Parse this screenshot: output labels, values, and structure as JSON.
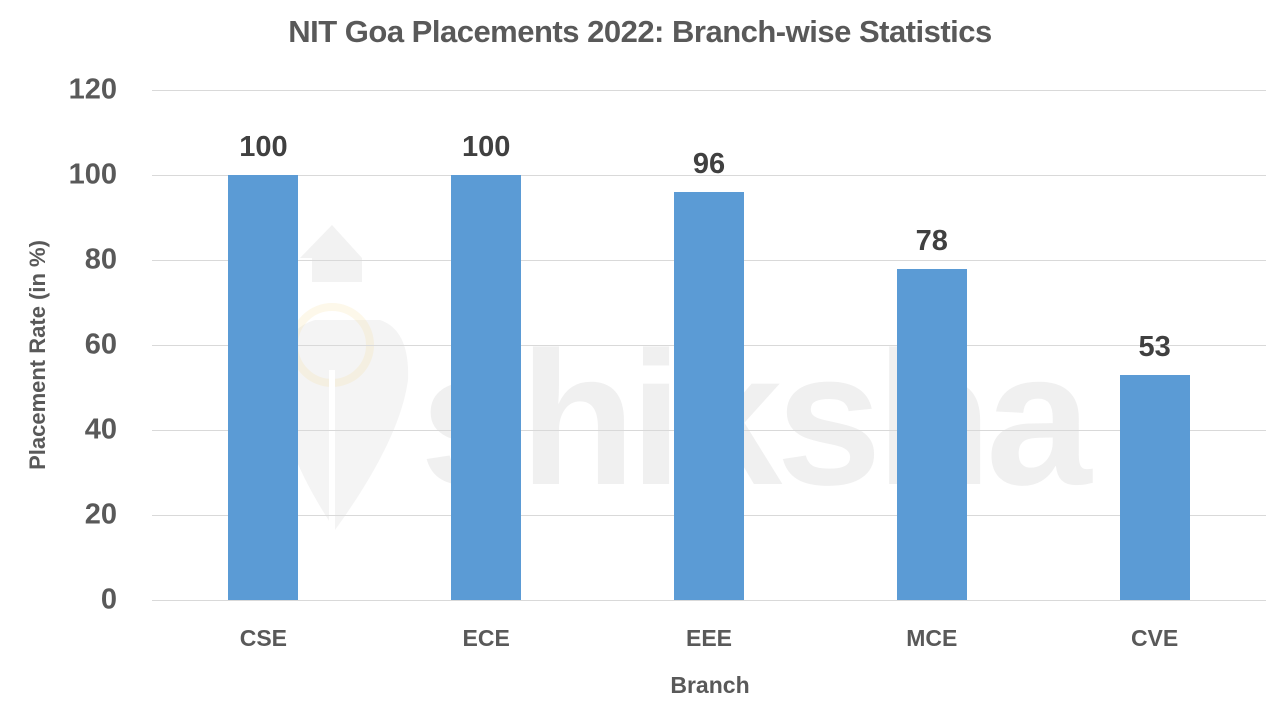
{
  "chart_data": {
    "type": "bar",
    "title": "NIT Goa Placements 2022: Branch-wise Statistics",
    "xlabel": "Branch",
    "ylabel": "Placement Rate (in %)",
    "categories": [
      "CSE",
      "ECE",
      "EEE",
      "MCE",
      "CVE"
    ],
    "values": [
      100,
      100,
      96,
      78,
      53
    ],
    "ylim": [
      0,
      120
    ],
    "yticks": [
      "0",
      "20",
      "40",
      "60",
      "80",
      "100",
      "120"
    ],
    "grid": true,
    "legend": null,
    "data_labels": [
      "100",
      "100",
      "96",
      "78",
      "53"
    ],
    "bar_color": "#5b9bd5"
  },
  "watermark": {
    "text": "shiksha"
  }
}
